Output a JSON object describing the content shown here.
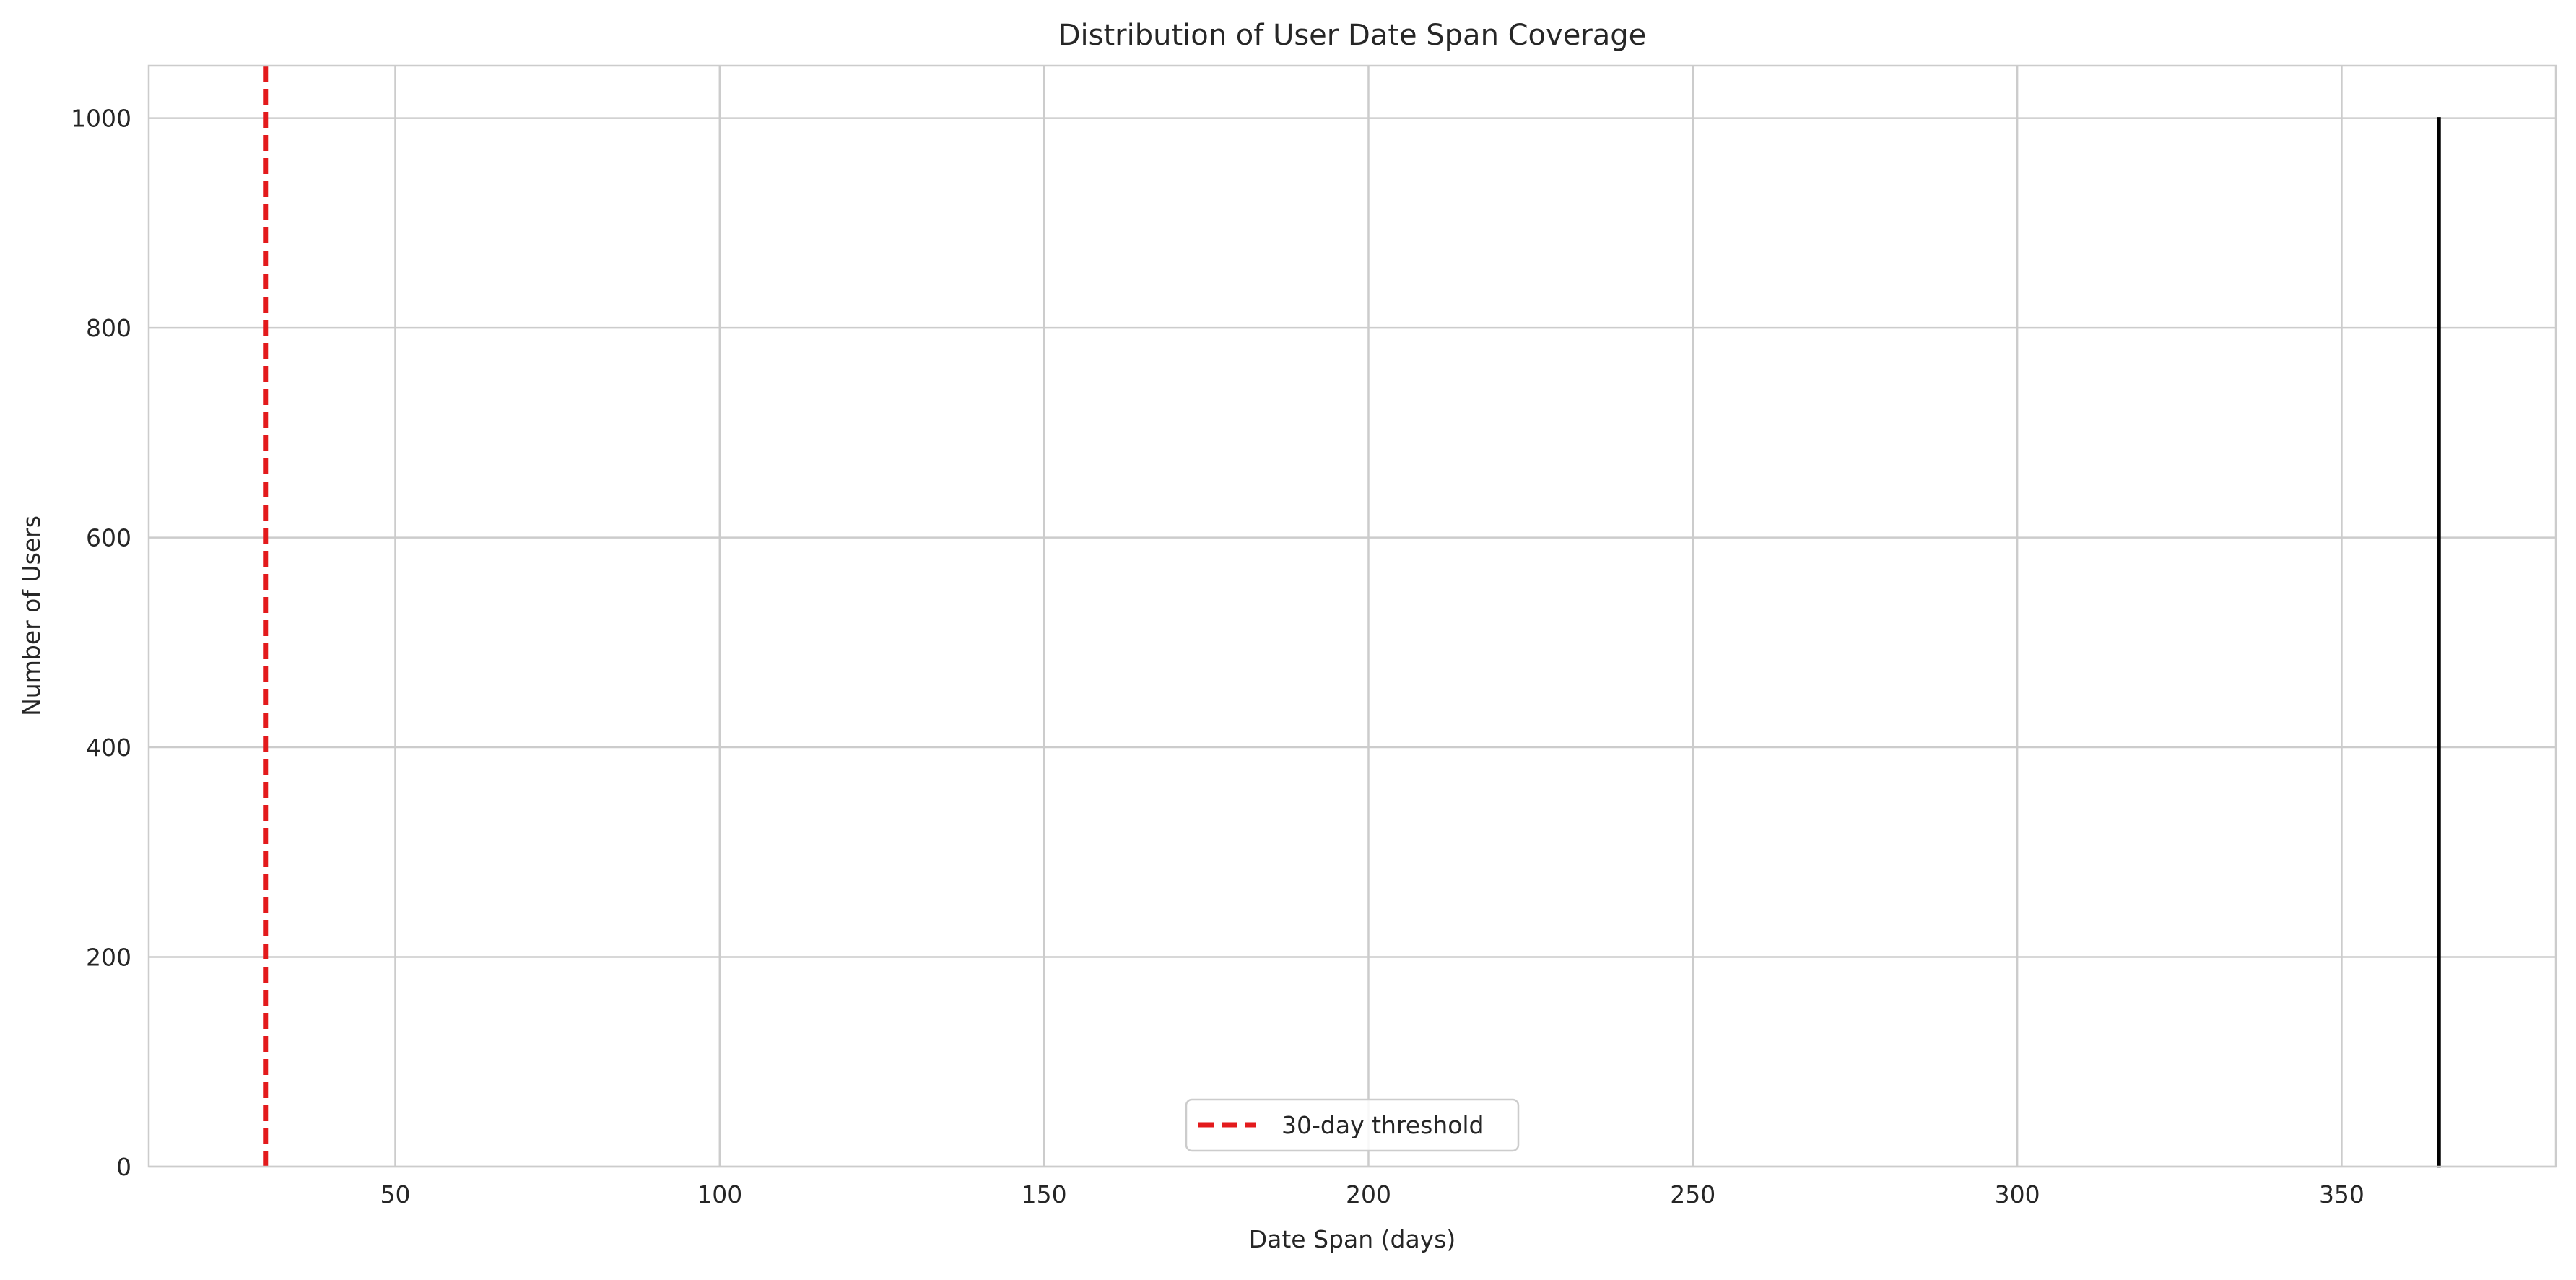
{
  "chart_data": {
    "type": "bar",
    "title": "Distribution of User Date Span Coverage",
    "xlabel": "Date Span (days)",
    "ylabel": "Number of Users",
    "xlim": [
      12,
      383
    ],
    "ylim": [
      0,
      1050
    ],
    "xticks": [
      50,
      100,
      150,
      200,
      250,
      300,
      350
    ],
    "yticks": [
      0,
      200,
      400,
      600,
      800,
      1000
    ],
    "grid": true,
    "bins": [
      {
        "x": 365,
        "count": 1000
      }
    ],
    "threshold": {
      "x": 30,
      "label": "30-day threshold",
      "color": "#e31a1c",
      "style": "dashed"
    },
    "bar_color": "#1f77b4",
    "bar_edge_color": "#000000",
    "legend": {
      "position": "lower center",
      "entries": [
        "30-day threshold"
      ]
    }
  }
}
